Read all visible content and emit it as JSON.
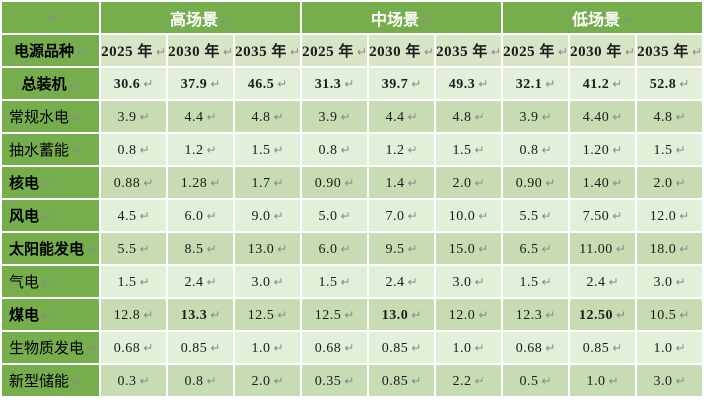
{
  "colors": {
    "header_green": "#77ae4d",
    "year_row_bg": "#d8e4c6",
    "band_light": "#e2efd9",
    "band_dark": "#c7dcb2",
    "scenario_text": "#ffffff",
    "body_text": "#1c1c1c",
    "cell_marker_gray": "#8b8b8b",
    "gridline_white": "#ffffff"
  },
  "table": {
    "eoc_marker": "↵",
    "row_header_label": "电源品种",
    "scenarios": [
      "高场景",
      "中场景",
      "低场景"
    ],
    "year_headers": [
      "2025 年",
      "2030 年",
      "2035 年",
      "2025 年",
      "2030 年",
      "2035 年",
      "2025 年",
      "2030 年",
      "2035 年"
    ],
    "rows": [
      {
        "label": "总装机",
        "label_bold": true,
        "label_align": "center",
        "values": [
          "30.6",
          "37.9",
          "46.5",
          "31.3",
          "39.7",
          "49.3",
          "32.1",
          "41.2",
          "52.8"
        ],
        "bold_values": [
          0,
          1,
          2,
          3,
          4,
          5,
          6,
          7,
          8
        ]
      },
      {
        "label": "常规水电",
        "label_bold": false,
        "label_align": "left",
        "values": [
          "3.9",
          "4.4",
          "4.8",
          "3.9",
          "4.4",
          "4.8",
          "3.9",
          "4.40",
          "4.8"
        ],
        "bold_values": []
      },
      {
        "label": "抽水蓄能",
        "label_bold": false,
        "label_align": "left",
        "values": [
          "0.8",
          "1.2",
          "1.5",
          "0.8",
          "1.2",
          "1.5",
          "0.8",
          "1.20",
          "1.5"
        ],
        "bold_values": []
      },
      {
        "label": "核电",
        "label_bold": true,
        "label_align": "left",
        "values": [
          "0.88",
          "1.28",
          "1.7",
          "0.90",
          "1.4",
          "2.0",
          "0.90",
          "1.40",
          "2.0"
        ],
        "bold_values": []
      },
      {
        "label": "风电",
        "label_bold": true,
        "label_align": "left",
        "values": [
          "4.5",
          "6.0",
          "9.0",
          "5.0",
          "7.0",
          "10.0",
          "5.5",
          "7.50",
          "12.0"
        ],
        "bold_values": []
      },
      {
        "label": "太阳能发电",
        "label_bold": true,
        "label_align": "left",
        "values": [
          "5.5",
          "8.5",
          "13.0",
          "6.0",
          "9.5",
          "15.0",
          "6.5",
          "11.00",
          "18.0"
        ],
        "bold_values": []
      },
      {
        "label": "气电",
        "label_bold": false,
        "label_align": "left",
        "values": [
          "1.5",
          "2.4",
          "3.0",
          "1.5",
          "2.4",
          "3.0",
          "1.5",
          "2.4",
          "3.0"
        ],
        "bold_values": []
      },
      {
        "label": "煤电",
        "label_bold": true,
        "label_align": "left",
        "values": [
          "12.8",
          "13.3",
          "12.5",
          "12.5",
          "13.0",
          "12.0",
          "12.3",
          "12.50",
          "10.5"
        ],
        "bold_values": [
          1,
          4,
          7
        ]
      },
      {
        "label": "生物质发电",
        "label_bold": false,
        "label_align": "left",
        "values": [
          "0.68",
          "0.85",
          "1.0",
          "0.68",
          "0.85",
          "1.0",
          "0.68",
          "0.85",
          "1.0"
        ],
        "bold_values": []
      },
      {
        "label": "新型储能",
        "label_bold": false,
        "label_align": "left",
        "values": [
          "0.3",
          "0.8",
          "2.0",
          "0.35",
          "0.85",
          "2.2",
          "0.5",
          "1.0",
          "3.0"
        ],
        "bold_values": []
      }
    ]
  }
}
